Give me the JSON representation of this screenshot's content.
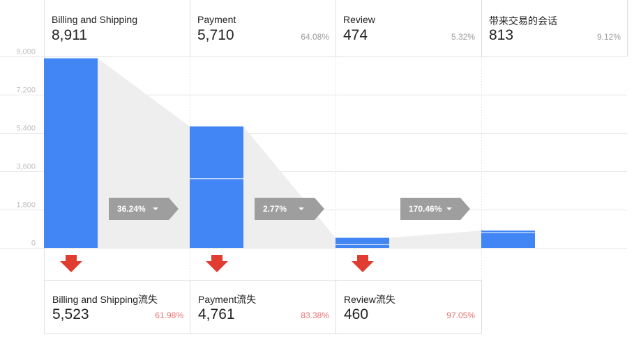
{
  "chart_data": {
    "type": "bar",
    "title": "",
    "xlabel": "",
    "ylabel": "",
    "ylim": [
      0,
      9000
    ],
    "y_ticks": [
      "9,000",
      "7,200",
      "5,400",
      "3,600",
      "1,800",
      "0"
    ],
    "y_tick_values": [
      9000,
      7200,
      5400,
      3600,
      1800,
      0
    ],
    "categories": [
      "Billing and Shipping",
      "Payment",
      "Review",
      "带来交易的会话"
    ],
    "values": [
      8911,
      5710,
      474,
      813
    ],
    "value_labels": [
      "8,911",
      "5,710",
      "474",
      "813"
    ],
    "entered_split": [
      null,
      3250,
      150,
      720
    ],
    "percents": [
      "",
      "64.08%",
      "5.32%",
      "9.12%"
    ],
    "transitions": [
      "36.24%",
      "2.77%",
      "170.46%"
    ],
    "dropoffs": [
      {
        "name": "Billing and Shipping流失",
        "value": 5523,
        "value_label": "5,523",
        "percent": "61.98%"
      },
      {
        "name": "Payment流失",
        "value": 4761,
        "value_label": "4,761",
        "percent": "83.38%"
      },
      {
        "name": "Review流失",
        "value": 460,
        "value_label": "460",
        "percent": "97.05%"
      }
    ],
    "grid": true,
    "legend": "none"
  },
  "colors": {
    "bar": "#4285f4",
    "connector": "#eeeeee",
    "pill": "#9e9e9e",
    "drop_arrow": "#e03c31",
    "drop_percent": "#e57373",
    "grid": "#e6e6e6"
  },
  "icons": {
    "drop_arrow": "arrow-down-icon",
    "pill_caret": "caret-down-icon"
  }
}
